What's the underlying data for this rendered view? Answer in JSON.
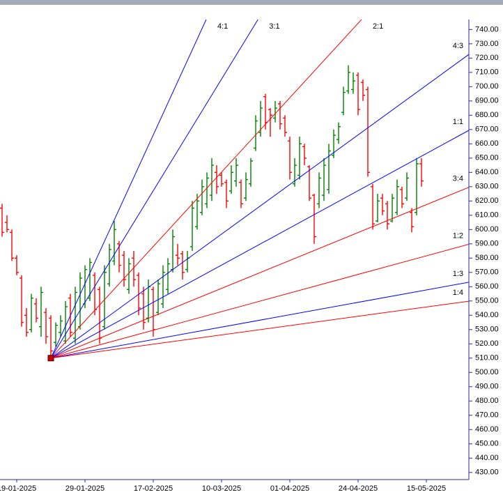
{
  "chart_data": {
    "type": "ohlc",
    "categories": [
      null,
      null,
      null,
      "19-01-2025",
      null,
      null,
      null,
      null,
      null,
      null,
      null,
      null,
      null,
      null,
      null,
      null,
      null,
      "29-01-2025",
      null,
      null,
      null,
      null,
      null,
      null,
      null,
      null,
      null,
      null,
      null,
      null,
      null,
      "17-02-2025",
      null,
      null,
      null,
      null,
      null,
      null,
      null,
      null,
      null,
      null,
      null,
      null,
      null,
      "10-03-2025",
      null,
      null,
      null,
      null,
      null,
      null,
      null,
      null,
      null,
      null,
      null,
      null,
      null,
      "01-04-2025",
      null,
      null,
      null,
      null,
      null,
      null,
      null,
      null,
      null,
      null,
      null,
      null,
      null,
      "24-04-2025",
      null,
      null,
      null,
      null,
      null,
      null,
      null,
      null,
      null,
      null,
      null,
      null,
      null,
      "15-05-2025"
    ],
    "open": [
      615,
      605,
      598,
      580,
      566,
      540,
      530,
      548,
      532,
      542,
      538,
      521,
      528,
      522,
      552,
      524,
      532,
      548,
      552,
      568,
      558,
      532,
      562,
      578,
      590,
      582,
      558,
      580,
      568,
      555,
      538,
      558,
      542,
      548,
      558,
      572,
      582,
      583,
      572,
      588,
      602,
      612,
      618,
      624,
      640,
      638,
      633,
      627,
      634,
      633,
      622,
      632,
      657,
      668,
      693,
      684,
      678,
      688,
      678,
      662,
      632,
      638,
      658,
      644,
      624,
      618,
      624,
      628,
      652,
      663,
      682,
      697,
      698,
      708,
      703,
      698,
      630,
      606,
      622,
      618,
      606,
      612,
      628,
      622,
      612,
      612,
      646,
      null
    ],
    "high": [
      618,
      610,
      600,
      582,
      568,
      545,
      555,
      552,
      560,
      545,
      540,
      535,
      540,
      550,
      555,
      560,
      570,
      575,
      580,
      570,
      560,
      575,
      590,
      606,
      592,
      585,
      580,
      585,
      570,
      560,
      565,
      560,
      565,
      575,
      580,
      600,
      590,
      585,
      585,
      620,
      625,
      635,
      640,
      650,
      645,
      640,
      635,
      645,
      650,
      635,
      640,
      650,
      680,
      690,
      695,
      685,
      690,
      690,
      680,
      665,
      650,
      665,
      660,
      645,
      625,
      640,
      650,
      660,
      670,
      675,
      700,
      715,
      710,
      710,
      705,
      700,
      632,
      625,
      625,
      620,
      625,
      635,
      630,
      640,
      615,
      650,
      650,
      null
    ],
    "low": [
      595,
      598,
      578,
      568,
      532,
      525,
      528,
      535,
      525,
      520,
      510,
      518,
      525,
      520,
      525,
      520,
      530,
      545,
      550,
      540,
      520,
      530,
      560,
      575,
      570,
      560,
      555,
      560,
      540,
      530,
      535,
      525,
      540,
      545,
      555,
      570,
      575,
      565,
      570,
      585,
      600,
      610,
      615,
      620,
      625,
      630,
      615,
      625,
      630,
      615,
      620,
      630,
      655,
      665,
      670,
      665,
      675,
      670,
      665,
      635,
      630,
      635,
      645,
      620,
      590,
      615,
      620,
      625,
      650,
      660,
      680,
      695,
      695,
      680,
      690,
      637,
      600,
      605,
      610,
      600,
      605,
      610,
      615,
      620,
      598,
      610,
      630,
      null
    ],
    "close": [
      598,
      600,
      580,
      570,
      535,
      528,
      552,
      538,
      556,
      525,
      515,
      533,
      536,
      546,
      528,
      556,
      566,
      572,
      577,
      544,
      524,
      570,
      586,
      600,
      575,
      565,
      576,
      565,
      545,
      535,
      560,
      530,
      562,
      570,
      576,
      595,
      580,
      570,
      580,
      615,
      620,
      630,
      636,
      645,
      630,
      632,
      620,
      640,
      645,
      618,
      635,
      648,
      676,
      685,
      675,
      680,
      685,
      674,
      668,
      640,
      645,
      660,
      650,
      622,
      595,
      636,
      645,
      655,
      666,
      672,
      696,
      710,
      704,
      684,
      694,
      640,
      604,
      620,
      613,
      604,
      622,
      630,
      618,
      636,
      602,
      646,
      634,
      null
    ],
    "up_color": "#008000",
    "down_color": "#ff0000",
    "ylim": [
      425,
      747
    ],
    "yticks": [
      {
        "value": 430,
        "label": "430.00"
      },
      {
        "value": 440,
        "label": "440.00"
      },
      {
        "value": 450,
        "label": "450.00"
      },
      {
        "value": 460,
        "label": "460.00"
      },
      {
        "value": 470,
        "label": "470.00"
      },
      {
        "value": 480,
        "label": "480.00"
      },
      {
        "value": 490,
        "label": "490.00"
      },
      {
        "value": 500,
        "label": "500.00"
      },
      {
        "value": 510,
        "label": "510.00"
      },
      {
        "value": 520,
        "label": "520.00"
      },
      {
        "value": 530,
        "label": "530.00"
      },
      {
        "value": 540,
        "label": "540.00"
      },
      {
        "value": 550,
        "label": "550.00"
      },
      {
        "value": 560,
        "label": "560.00"
      },
      {
        "value": 570,
        "label": "570.00"
      },
      {
        "value": 580,
        "label": "580.00"
      },
      {
        "value": 590,
        "label": "590.00"
      },
      {
        "value": 600,
        "label": "600.00"
      },
      {
        "value": 610,
        "label": "610.00"
      },
      {
        "value": 620,
        "label": "620.00"
      },
      {
        "value": 630,
        "label": "630.00"
      },
      {
        "value": 640,
        "label": "640.00"
      },
      {
        "value": 650,
        "label": "650.00"
      },
      {
        "value": 660,
        "label": "660.00"
      },
      {
        "value": 670,
        "label": "670.00"
      },
      {
        "value": 680,
        "label": "680.00"
      },
      {
        "value": 690,
        "label": "690.00"
      },
      {
        "value": 700,
        "label": "700.00"
      },
      {
        "value": 710,
        "label": "710.00"
      },
      {
        "value": 720,
        "label": "720.00"
      },
      {
        "value": 730,
        "label": "730.00"
      },
      {
        "value": 740,
        "label": "740.00"
      }
    ],
    "fan": {
      "origin": {
        "index": 10,
        "price": 510
      },
      "price_per_bar": 1.86,
      "marker_color": "#cc0000",
      "lines": [
        {
          "label": "4:1",
          "ratio": 4,
          "color": "#0000ff"
        },
        {
          "label": "3:1",
          "ratio": 3,
          "color": "#0000ff"
        },
        {
          "label": "2:1",
          "ratio": 2,
          "color": "#ff0000"
        },
        {
          "label": "4:3",
          "ratio": 1.3333,
          "color": "#0000ff"
        },
        {
          "label": "1:1",
          "ratio": 1,
          "color": "#0000ff"
        },
        {
          "label": "3:4",
          "ratio": 0.75,
          "color": "#ff0000"
        },
        {
          "label": "1:2",
          "ratio": 0.5,
          "color": "#ff0000"
        },
        {
          "label": "1:3",
          "ratio": 0.3333,
          "color": "#0000ff"
        },
        {
          "label": "1:4",
          "ratio": 0.25,
          "color": "#ff0000"
        }
      ]
    }
  }
}
